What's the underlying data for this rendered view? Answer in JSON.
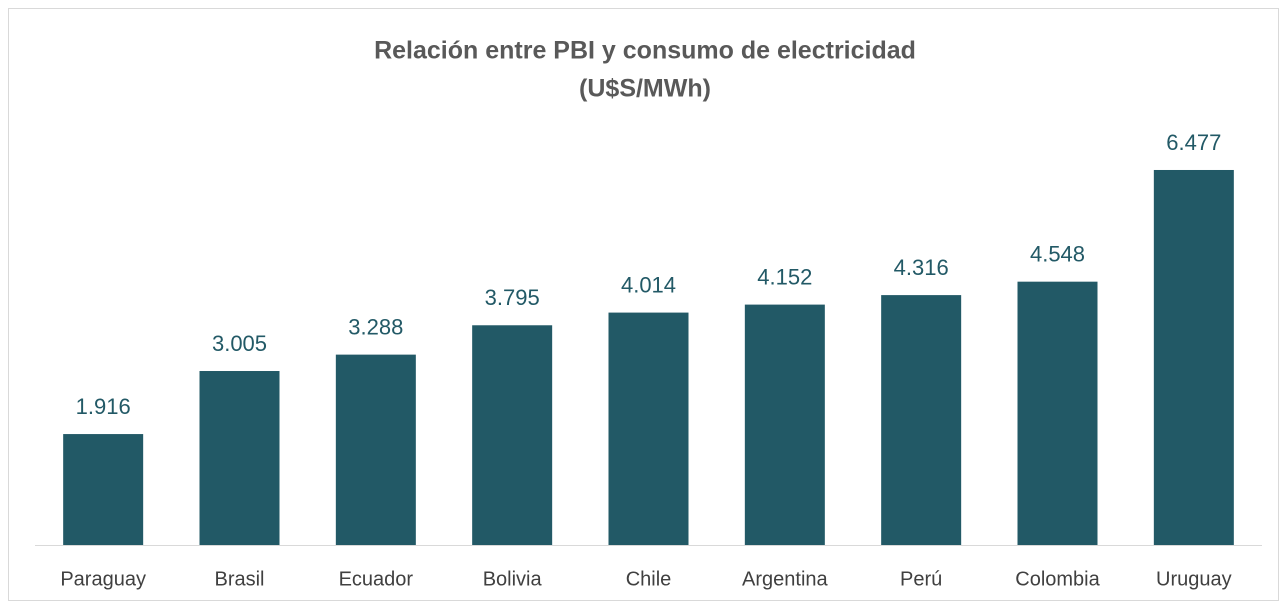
{
  "chart_data": {
    "type": "bar",
    "title": "Relación entre PBI y consumo de electricidad",
    "subtitle": "(U$S/MWh)",
    "categories": [
      "Paraguay",
      "Brasil",
      "Ecuador",
      "Bolivia",
      "Chile",
      "Argentina",
      "Perú",
      "Colombia",
      "Uruguay"
    ],
    "values": [
      1916,
      3005,
      3288,
      3795,
      4014,
      4152,
      4316,
      4548,
      6477
    ],
    "value_labels": [
      "1.916",
      "3.005",
      "3.288",
      "3.795",
      "4.014",
      "4.152",
      "4.316",
      "4.548",
      "6.477"
    ],
    "color": "#225966"
  }
}
